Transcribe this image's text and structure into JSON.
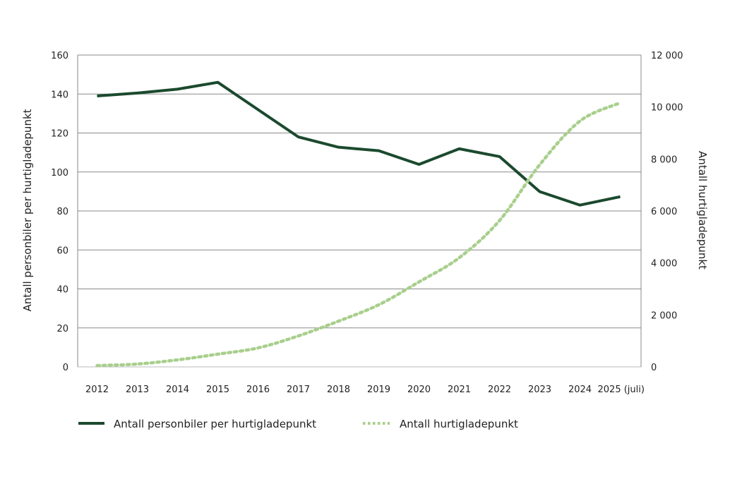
{
  "chart_data": {
    "type": "line",
    "title": "",
    "categories": [
      "2012",
      "2013",
      "2014",
      "2015",
      "2016",
      "2017",
      "2018",
      "2019",
      "2020",
      "2021",
      "2022",
      "2023",
      "2024",
      "2025 (juli)"
    ],
    "ylabel_left": "Antall personbiler per hurtigladepunkt",
    "ylabel_right": "Antall hurtigladepunkt",
    "ylim_left": [
      0,
      160
    ],
    "ylim_right": [
      0,
      12000
    ],
    "yticks_left": [
      "0",
      "20",
      "40",
      "60",
      "80",
      "100",
      "120",
      "140",
      "160"
    ],
    "yticks_right": [
      "0",
      "2 000",
      "4 000",
      "6 000",
      "8 000",
      "10 000",
      "12 000"
    ],
    "grid": true,
    "legend_position": "bottom-left",
    "series": [
      {
        "name": "Antall personbiler per hurtigladepunkt",
        "axis": "left",
        "style": "solid",
        "color": "#1b4a2e",
        "values": [
          139,
          140.5,
          142.5,
          146,
          132,
          118,
          112.7,
          110.9,
          103.9,
          111.9,
          107.9,
          89.9,
          83,
          87.3
        ]
      },
      {
        "name": "Antall hurtigladepunkt",
        "axis": "right",
        "style": "dotted",
        "color": "#a8cf8c",
        "values": [
          50,
          110,
          270,
          490,
          730,
          1190,
          1760,
          2390,
          3270,
          4200,
          5630,
          7780,
          9460,
          10160
        ]
      }
    ]
  }
}
